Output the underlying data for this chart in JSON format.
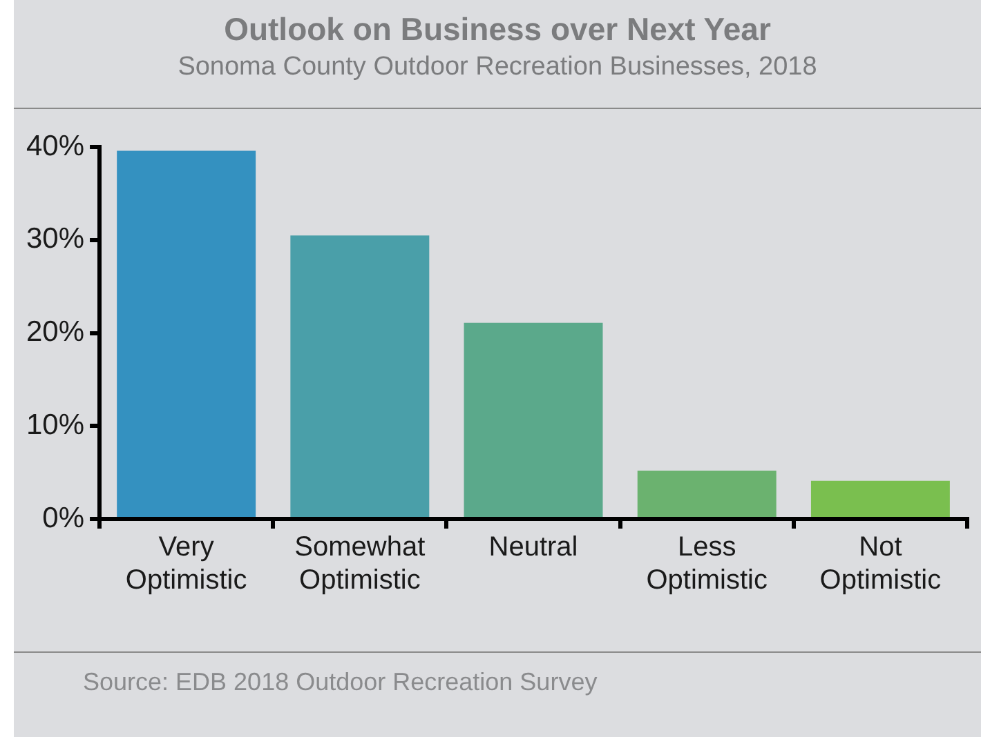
{
  "chart_data": {
    "type": "bar",
    "title": "Outlook on Business over Next Year",
    "subtitle": "Sonoma County Outdoor Recreation Businesses, 2018",
    "categories": [
      "Very Optimistic",
      "Somewhat Optimistic",
      "Neutral",
      "Less Optimistic",
      "Not Optimistic"
    ],
    "values": [
      39.6,
      30.5,
      21.1,
      5.2,
      4.1
    ],
    "colors": [
      "#3491c0",
      "#4a9fa9",
      "#5ba98b",
      "#6bb26f",
      "#7abf4f"
    ],
    "ylim": [
      0,
      40
    ],
    "yticks": [
      {
        "value": 0,
        "label": "0%"
      },
      {
        "value": 10,
        "label": "10%"
      },
      {
        "value": 20,
        "label": "20%"
      },
      {
        "value": 30,
        "label": "30%"
      },
      {
        "value": 40,
        "label": "40%"
      }
    ],
    "grid": false,
    "legend": false,
    "annotations": [
      "Source: EDB 2018 Outdoor Recreation Survey"
    ]
  }
}
